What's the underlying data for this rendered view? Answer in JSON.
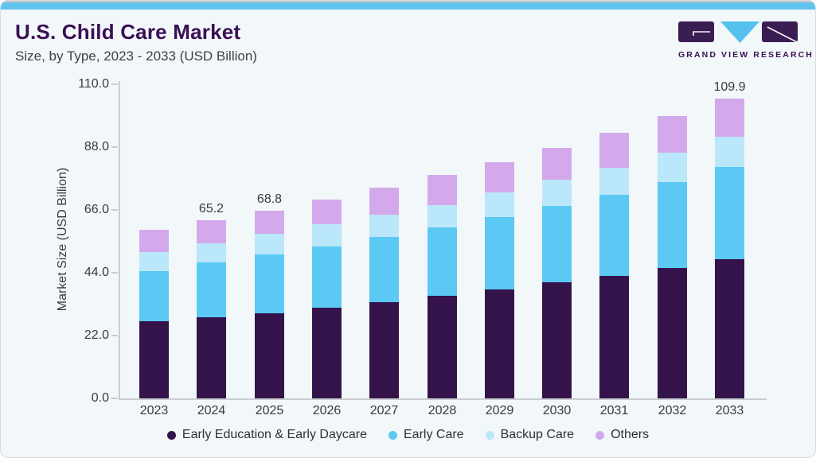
{
  "header": {
    "title": "U.S. Child Care Market",
    "subtitle": "Size, by Type, 2023 - 2033 (USD Billion)"
  },
  "logo": {
    "text": "GRAND VIEW RESEARCH",
    "block_color": "#3a1d52",
    "triangle_color": "#55c1ec"
  },
  "colors": {
    "card_background": "#f2f7fa",
    "top_stripe": "#61c4ef",
    "title": "#3a1053",
    "axis": "#c9ccd1",
    "text": "#3a3a42"
  },
  "chart_data": {
    "type": "bar",
    "stacked": true,
    "title": "U.S. Child Care Market",
    "subtitle": "Size, by Type, 2023 - 2033 (USD Billion)",
    "xlabel": "",
    "ylabel": "Market Size (USD Billion)",
    "ylim": [
      0,
      110
    ],
    "yticks": [
      "0.0",
      "22.0",
      "44.0",
      "66.0",
      "88.0",
      "110.0"
    ],
    "grid": false,
    "legend_position": "bottom",
    "categories": [
      "2023",
      "2024",
      "2025",
      "2026",
      "2027",
      "2028",
      "2029",
      "2030",
      "2031",
      "2032",
      "2033"
    ],
    "series": [
      {
        "name": "Early Education & Early Daycare",
        "color": "#331349",
        "values": [
          28.3,
          29.8,
          31.2,
          33.3,
          35.3,
          37.6,
          39.9,
          42.5,
          44.9,
          47.8,
          51.0
        ]
      },
      {
        "name": "Early Care",
        "color": "#5bc9f4",
        "values": [
          18.3,
          20.0,
          21.5,
          22.4,
          23.9,
          25.0,
          26.6,
          28.1,
          29.7,
          31.6,
          33.8
        ]
      },
      {
        "name": "Backup Care",
        "color": "#bae7f9",
        "values": [
          7.0,
          6.9,
          7.5,
          8.1,
          8.1,
          8.3,
          9.0,
          9.6,
          9.9,
          10.7,
          11.1
        ]
      },
      {
        "name": "Others",
        "color": "#d4a9ec",
        "values": [
          8.2,
          8.5,
          8.6,
          9.1,
          10.0,
          10.9,
          11.0,
          11.6,
          12.9,
          13.4,
          14.0
        ]
      }
    ],
    "totals": [
      61.8,
      65.2,
      68.8,
      72.9,
      77.3,
      81.8,
      86.5,
      91.8,
      97.4,
      103.5,
      109.9
    ],
    "value_labels": [
      {
        "category": "2024",
        "index": 1,
        "text": "65.2"
      },
      {
        "category": "2025",
        "index": 2,
        "text": "68.8"
      },
      {
        "category": "2033",
        "index": 10,
        "text": "109.9"
      }
    ]
  }
}
